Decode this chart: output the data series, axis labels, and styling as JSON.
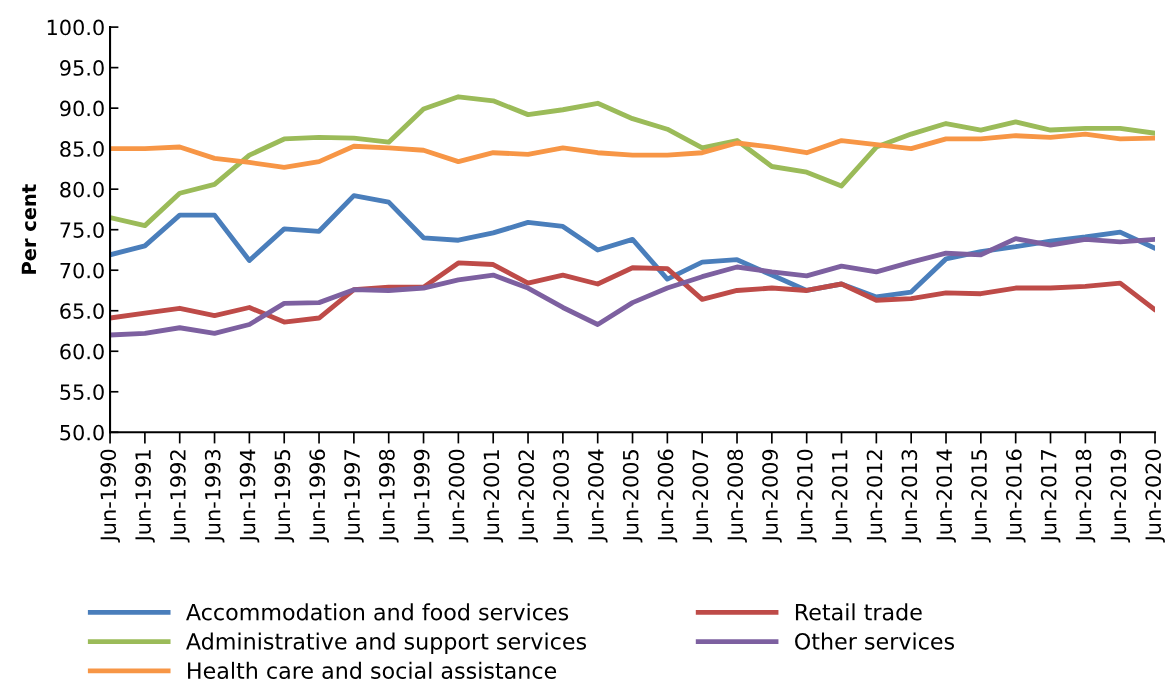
{
  "chart_data": {
    "type": "line",
    "ylabel": "Per cent",
    "categories": [
      "Jun-1990",
      "Jun-1991",
      "Jun-1992",
      "Jun-1993",
      "Jun-1994",
      "Jun-1995",
      "Jun-1996",
      "Jun-1997",
      "Jun-1998",
      "Jun-1999",
      "Jun-2000",
      "Jun-2001",
      "Jun-2002",
      "Jun-2003",
      "Jun-2004",
      "Jun-2005",
      "Jun-2006",
      "Jun-2007",
      "Jun-2008",
      "Jun-2009",
      "Jun-2010",
      "Jun-2011",
      "Jun-2012",
      "Jun-2013",
      "Jun-2014",
      "Jun-2015",
      "Jun-2016",
      "Jun-2017",
      "Jun-2018",
      "Jun-2019",
      "Jun-2020"
    ],
    "series": [
      {
        "name": "Accommodation and food services",
        "color": "#4a7ebb",
        "values": [
          71.9,
          73.0,
          76.8,
          76.8,
          71.2,
          75.1,
          74.8,
          79.2,
          78.4,
          74.0,
          73.7,
          74.6,
          75.9,
          75.4,
          72.5,
          73.8,
          68.9,
          71.0,
          71.3,
          69.4,
          67.5,
          68.3,
          66.7,
          67.3,
          71.4,
          72.3,
          72.9,
          73.6,
          74.1,
          74.7,
          72.7
        ]
      },
      {
        "name": "Administrative and support services",
        "color": "#9bbb59",
        "values": [
          76.5,
          75.5,
          79.5,
          80.6,
          84.2,
          86.2,
          86.4,
          86.3,
          85.8,
          89.9,
          91.4,
          90.9,
          89.2,
          89.8,
          90.6,
          88.7,
          87.4,
          85.1,
          86.0,
          82.8,
          82.1,
          80.4,
          85.2,
          86.8,
          88.1,
          87.3,
          88.3,
          87.3,
          87.5,
          87.5,
          86.9
        ]
      },
      {
        "name": "Health care and social assistance",
        "color": "#f79646",
        "values": [
          85.0,
          85.0,
          85.2,
          83.8,
          83.3,
          82.7,
          83.4,
          85.3,
          85.1,
          84.8,
          83.4,
          84.5,
          84.3,
          85.1,
          84.5,
          84.2,
          84.2,
          84.5,
          85.7,
          85.2,
          84.5,
          86.0,
          85.5,
          85.0,
          86.2,
          86.2,
          86.6,
          86.4,
          86.8,
          86.2,
          86.3
        ]
      },
      {
        "name": "Retail trade",
        "color": "#be4b48",
        "values": [
          64.1,
          64.7,
          65.3,
          64.4,
          65.4,
          63.6,
          64.1,
          67.6,
          67.9,
          67.9,
          70.9,
          70.7,
          68.4,
          69.4,
          68.3,
          70.3,
          70.2,
          66.4,
          67.5,
          67.8,
          67.5,
          68.3,
          66.3,
          66.5,
          67.2,
          67.1,
          67.8,
          67.8,
          68.0,
          68.4,
          65.1
        ]
      },
      {
        "name": "Other services",
        "color": "#7d60a0",
        "values": [
          62.0,
          62.2,
          62.9,
          62.2,
          63.3,
          65.9,
          66.0,
          67.6,
          67.5,
          67.8,
          68.8,
          69.4,
          67.8,
          65.4,
          63.3,
          66.0,
          67.8,
          69.2,
          70.4,
          69.8,
          69.3,
          70.5,
          69.8,
          71.0,
          72.1,
          71.9,
          73.9,
          73.1,
          73.8,
          73.5,
          73.8
        ]
      }
    ],
    "ylim": [
      50,
      100
    ],
    "yticks": [
      {
        "value": 50,
        "label": "50.0"
      },
      {
        "value": 55,
        "label": "55.0"
      },
      {
        "value": 60,
        "label": "60.0"
      },
      {
        "value": 65,
        "label": "65.0"
      },
      {
        "value": 70,
        "label": "70.0"
      },
      {
        "value": 75,
        "label": "75.0"
      },
      {
        "value": 80,
        "label": "80.0"
      },
      {
        "value": 85,
        "label": "85.0"
      },
      {
        "value": 90,
        "label": "90.0"
      },
      {
        "value": 95,
        "label": "95.0"
      },
      {
        "value": 100,
        "label": "100.0"
      }
    ],
    "grid": false,
    "legend": "bottom",
    "marker": "none",
    "line_style": "solid"
  }
}
